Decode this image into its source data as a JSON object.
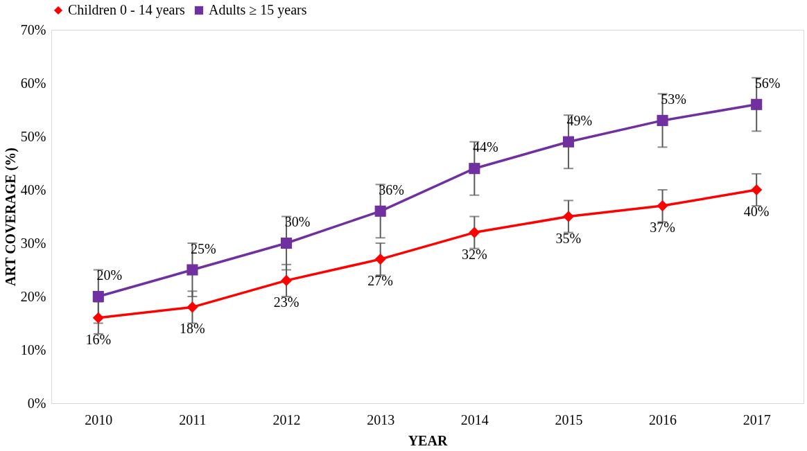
{
  "chart_data": {
    "type": "line",
    "xlabel": "YEAR",
    "ylabel": "ART COVERAGE (%)",
    "categories": [
      "2010",
      "2011",
      "2012",
      "2013",
      "2014",
      "2015",
      "2016",
      "2017"
    ],
    "series": [
      {
        "name": "Children 0 - 14 years",
        "color": "#ff0000",
        "marker": "diamond",
        "values": [
          16,
          18,
          23,
          27,
          32,
          35,
          37,
          40
        ],
        "value_labels": [
          "16%",
          "18%",
          "23%",
          "27%",
          "32%",
          "35%",
          "37%",
          "40%"
        ],
        "errors": [
          3,
          3,
          3,
          3,
          3,
          3,
          3,
          3
        ]
      },
      {
        "name": "Adults ≥ 15 years",
        "color": "#7030a0",
        "marker": "square",
        "values": [
          20,
          25,
          30,
          36,
          44,
          49,
          53,
          56
        ],
        "value_labels": [
          "20%",
          "25%",
          "30%",
          "36%",
          "44%",
          "49%",
          "53%",
          "56%"
        ],
        "errors": [
          5,
          5,
          5,
          5,
          5,
          5,
          5,
          5
        ]
      }
    ],
    "ylim": [
      0,
      70
    ],
    "yticks": [
      {
        "value": 0,
        "label": "0%"
      },
      {
        "value": 10,
        "label": "10%"
      },
      {
        "value": 20,
        "label": "20%"
      },
      {
        "value": 30,
        "label": "30%"
      },
      {
        "value": 40,
        "label": "40%"
      },
      {
        "value": 50,
        "label": "50%"
      },
      {
        "value": 60,
        "label": "60%"
      },
      {
        "value": 70,
        "label": "70%"
      }
    ],
    "legend": "top",
    "grid": false,
    "line_style": "solid"
  }
}
